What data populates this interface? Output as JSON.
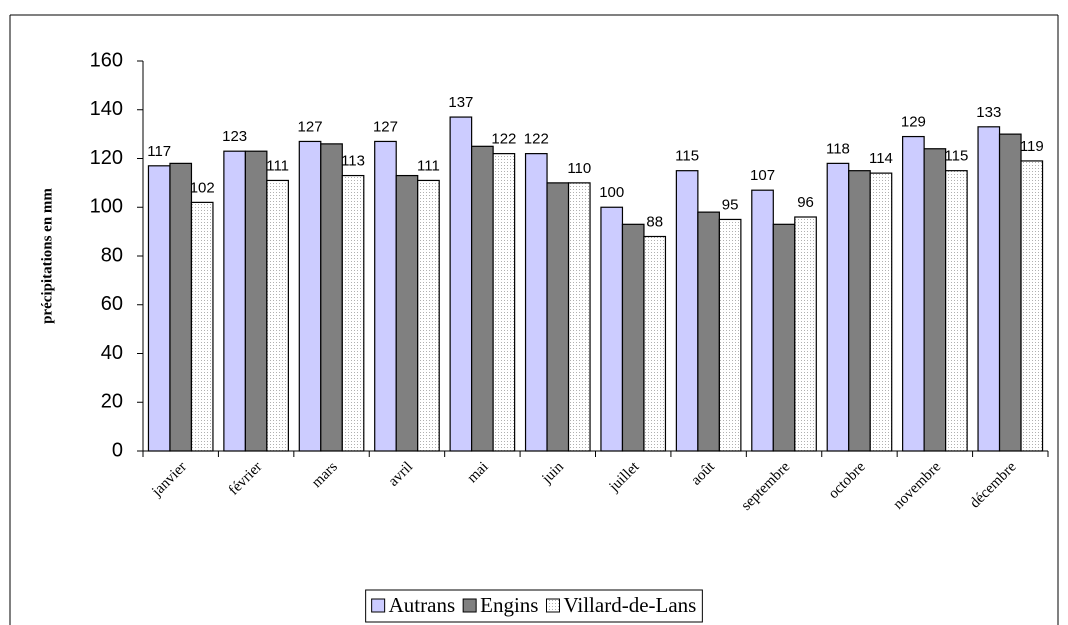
{
  "chart_data": {
    "type": "bar",
    "y_label": "précipitations en mm",
    "categories": [
      "janvier",
      "février",
      "mars",
      "avril",
      "mai",
      "juin",
      "juillet",
      "août",
      "septembre",
      "octobre",
      "novembre",
      "décembre"
    ],
    "series": [
      {
        "name": "Autrans",
        "color": "#ccccff",
        "labels": true,
        "values": [
          117,
          123,
          127,
          127,
          137,
          122,
          100,
          115,
          107,
          118,
          129,
          133
        ]
      },
      {
        "name": "Engins",
        "color": "#808080",
        "labels": false,
        "values": [
          118,
          123,
          126,
          113,
          125,
          110,
          93,
          98,
          93,
          115,
          124,
          130
        ]
      },
      {
        "name": "Villard-de-Lans",
        "color": "#b0b0b0",
        "pattern": "dots",
        "labels": true,
        "values": [
          102,
          111,
          113,
          111,
          122,
          110,
          88,
          95,
          96,
          114,
          115,
          119
        ]
      }
    ],
    "ylim": [
      0,
      160
    ],
    "yticks": [
      0,
      20,
      40,
      60,
      80,
      100,
      120,
      140,
      160
    ],
    "grid": false,
    "legend": "bottom"
  }
}
